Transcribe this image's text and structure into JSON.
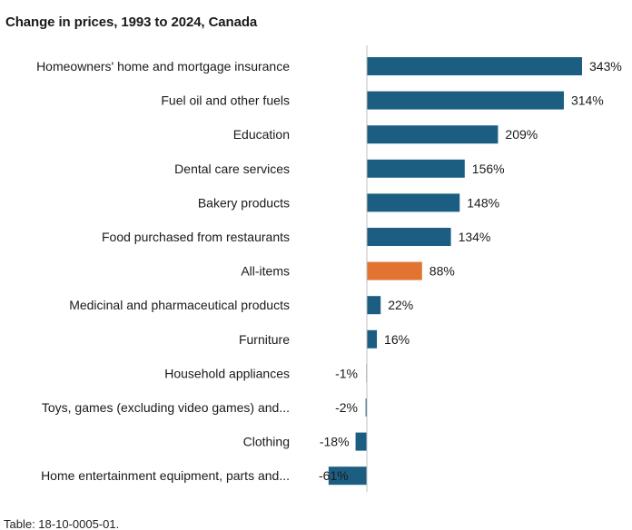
{
  "chart_data": {
    "type": "bar",
    "orientation": "horizontal",
    "title": "Change in prices, 1993 to 2024, Canada",
    "xlabel": "",
    "ylabel": "",
    "grid": false,
    "legend": "none",
    "xlim": [
      -61,
      343
    ],
    "categories": [
      "Homeowners' home and mortgage insurance",
      "Fuel oil and other fuels",
      "Education",
      "Dental care services",
      "Bakery products",
      "Food purchased from restaurants",
      "All-items",
      "Medicinal and pharmaceutical products",
      "Furniture",
      "Household appliances",
      "Toys, games (excluding video games) and...",
      "Clothing",
      "Home entertainment equipment, parts and..."
    ],
    "values": [
      343,
      314,
      209,
      156,
      148,
      134,
      88,
      22,
      16,
      -1,
      -2,
      -18,
      -61
    ],
    "value_labels": [
      "343%",
      "314%",
      "209%",
      "156%",
      "148%",
      "134%",
      "88%",
      "22%",
      "16%",
      "-1%",
      "-2%",
      "-18%",
      "-61%"
    ],
    "highlight_category": "All-items",
    "colors": {
      "bar": "#1b5e82",
      "highlight": "#e27432",
      "axis": "#bfbfbf"
    }
  },
  "footer": {
    "source": "Table: 18-10-0005-01."
  }
}
